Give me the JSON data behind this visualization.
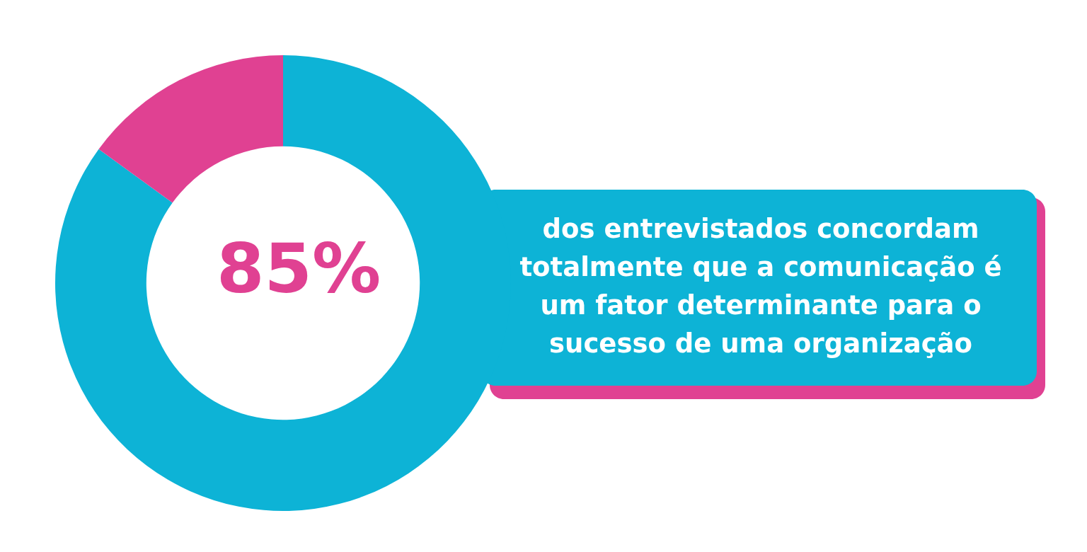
{
  "chart_data": {
    "type": "donut",
    "categories": [
      null,
      null
    ],
    "values": [
      85,
      15
    ],
    "colors": [
      "#0db3d6",
      "#e04192"
    ],
    "value_labels": [
      "85%",
      null
    ],
    "annotations": [
      "dos entrevistados concordam totalmente que a comunicação é um fator determinante para o sucesso de uma organização"
    ]
  }
}
